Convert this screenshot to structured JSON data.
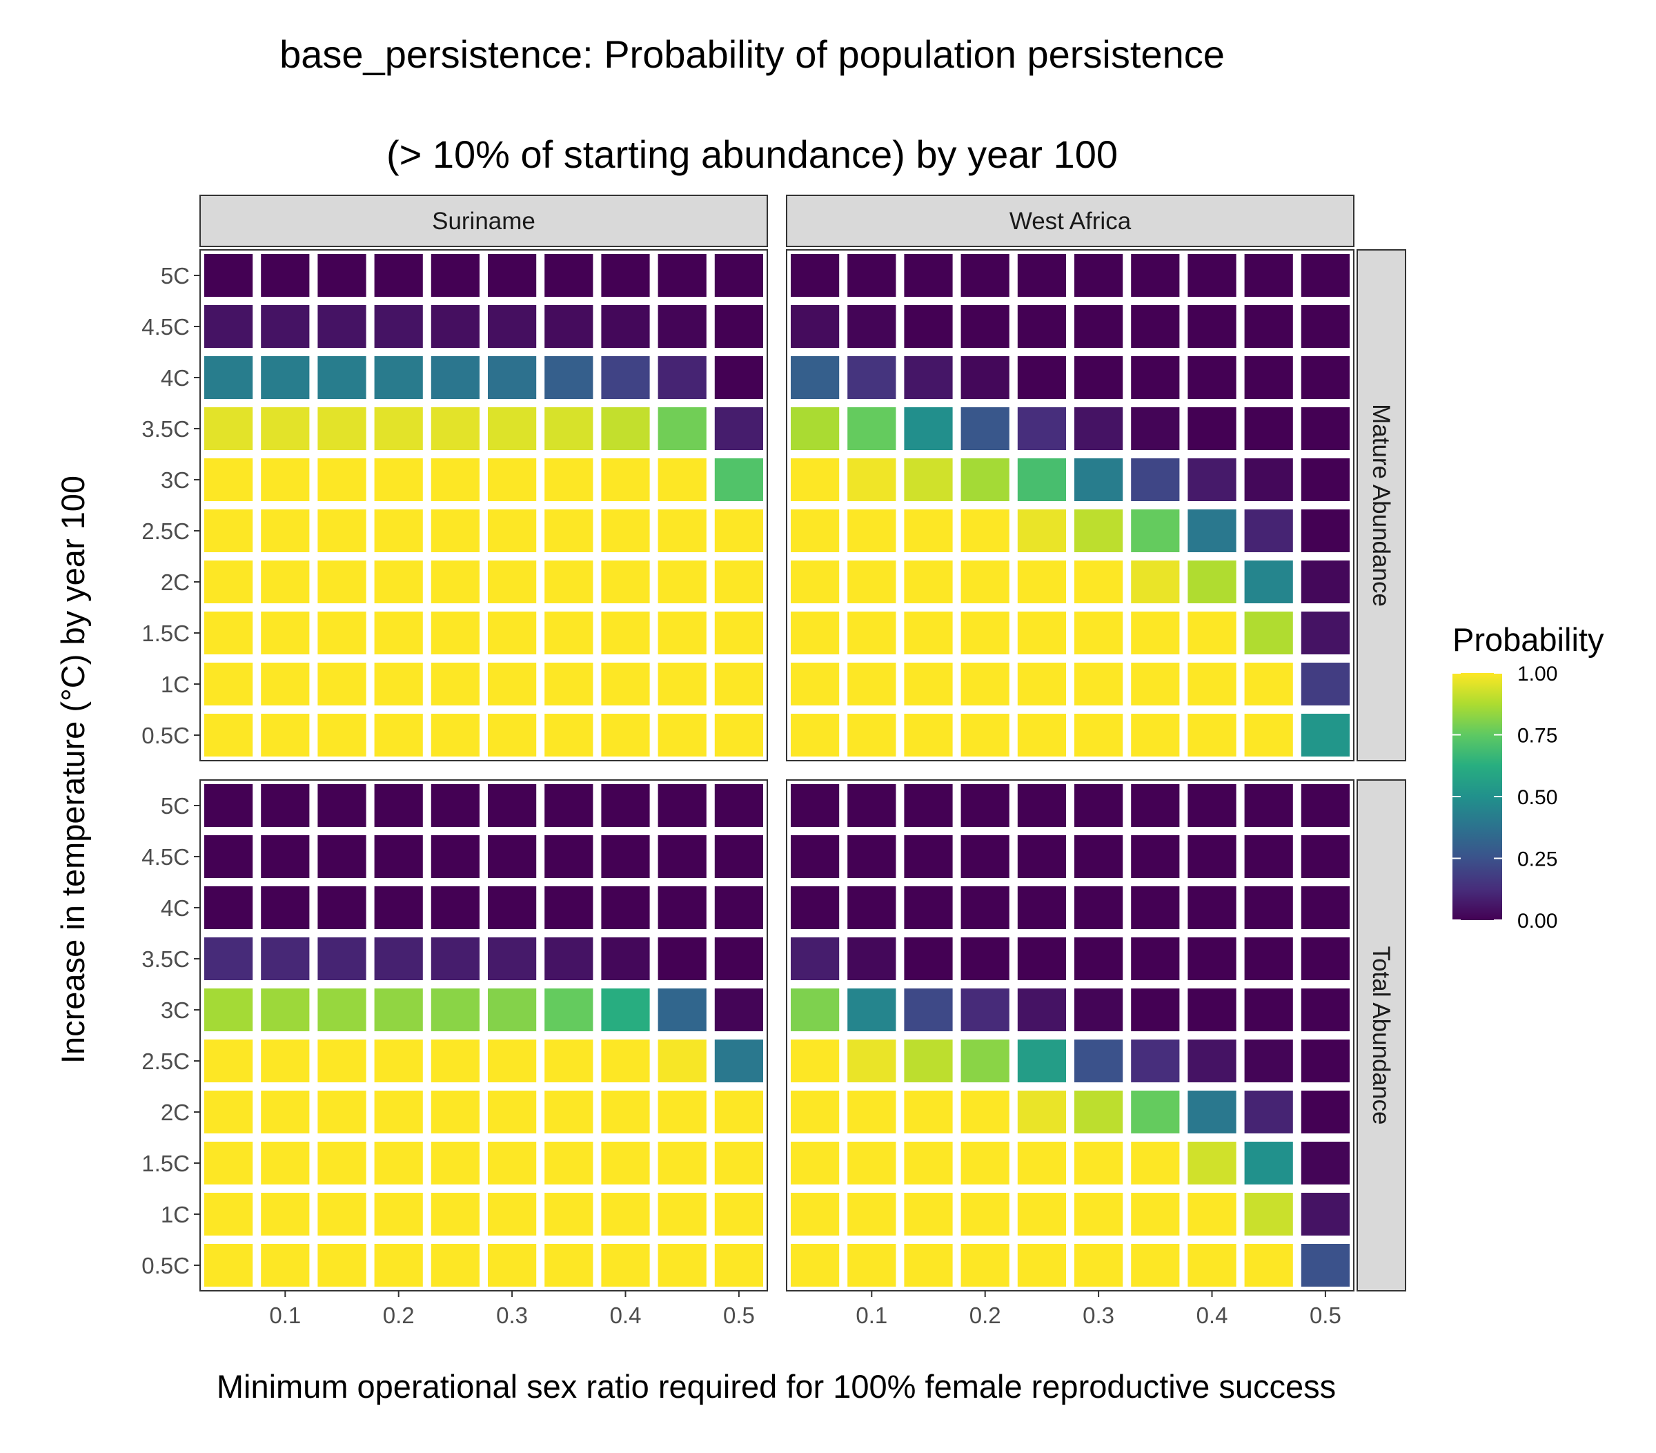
{
  "chart_data": {
    "type": "heatmap",
    "title_lines": [
      "base_persistence: Probability of population persistence",
      "(> 10% of starting abundance) by year 100"
    ],
    "xlabel": "Minimum operational sex ratio required for 100% female reproductive success",
    "ylabel": "Increase in temperature (°C) by year 100",
    "columns": [
      "Suriname",
      "West Africa"
    ],
    "rows": [
      "Mature Abundance",
      "Total Abundance"
    ],
    "x": [
      0.05,
      0.1,
      0.15,
      0.2,
      0.25,
      0.3,
      0.35,
      0.4,
      0.45,
      0.5
    ],
    "x_ticks": [
      0.1,
      0.2,
      0.3,
      0.4,
      0.5
    ],
    "x_tick_labels": [
      "0.1",
      "0.2",
      "0.3",
      "0.4",
      "0.5"
    ],
    "xlim": [
      0.025,
      0.525
    ],
    "y_labels": [
      "5C",
      "4.5C",
      "4C",
      "3.5C",
      "3C",
      "2.5C",
      "2C",
      "1.5C",
      "1C",
      "0.5C"
    ],
    "legend": {
      "title": "Probability",
      "ticks": [
        "1.00",
        "0.75",
        "0.50",
        "0.25",
        "0.00"
      ],
      "tick_values": [
        1.0,
        0.75,
        0.5,
        0.25,
        0.0
      ],
      "position": "right",
      "colormap": "viridis"
    },
    "panels": [
      {
        "column": "Suriname",
        "row": "Mature Abundance",
        "values": [
          [
            0.0,
            0.0,
            0.0,
            0.0,
            0.0,
            0.0,
            0.0,
            0.0,
            0.0,
            0.0
          ],
          [
            0.05,
            0.05,
            0.05,
            0.05,
            0.04,
            0.04,
            0.03,
            0.02,
            0.01,
            0.0
          ],
          [
            0.42,
            0.42,
            0.42,
            0.41,
            0.39,
            0.37,
            0.3,
            0.2,
            0.1,
            0.0
          ],
          [
            0.96,
            0.96,
            0.96,
            0.96,
            0.96,
            0.95,
            0.94,
            0.91,
            0.78,
            0.08
          ],
          [
            1.0,
            1.0,
            1.0,
            1.0,
            1.0,
            1.0,
            1.0,
            1.0,
            1.0,
            0.72
          ],
          [
            1.0,
            1.0,
            1.0,
            1.0,
            1.0,
            1.0,
            1.0,
            1.0,
            1.0,
            1.0
          ],
          [
            1.0,
            1.0,
            1.0,
            1.0,
            1.0,
            1.0,
            1.0,
            1.0,
            1.0,
            1.0
          ],
          [
            1.0,
            1.0,
            1.0,
            1.0,
            1.0,
            1.0,
            1.0,
            1.0,
            1.0,
            1.0
          ],
          [
            1.0,
            1.0,
            1.0,
            1.0,
            1.0,
            1.0,
            1.0,
            1.0,
            1.0,
            1.0
          ],
          [
            1.0,
            1.0,
            1.0,
            1.0,
            1.0,
            1.0,
            1.0,
            1.0,
            1.0,
            1.0
          ]
        ]
      },
      {
        "column": "West Africa",
        "row": "Mature Abundance",
        "values": [
          [
            0.0,
            0.0,
            0.0,
            0.0,
            0.0,
            0.0,
            0.0,
            0.0,
            0.0,
            0.0
          ],
          [
            0.03,
            0.01,
            0.0,
            0.0,
            0.0,
            0.0,
            0.0,
            0.0,
            0.0,
            0.0
          ],
          [
            0.3,
            0.15,
            0.06,
            0.02,
            0.0,
            0.0,
            0.0,
            0.0,
            0.0,
            0.0
          ],
          [
            0.87,
            0.76,
            0.49,
            0.27,
            0.13,
            0.05,
            0.01,
            0.0,
            0.0,
            0.0
          ],
          [
            1.0,
            0.98,
            0.93,
            0.86,
            0.7,
            0.42,
            0.21,
            0.07,
            0.02,
            0.0
          ],
          [
            1.0,
            1.0,
            1.0,
            1.0,
            0.97,
            0.9,
            0.76,
            0.4,
            0.1,
            0.0
          ],
          [
            1.0,
            1.0,
            1.0,
            1.0,
            1.0,
            1.0,
            0.97,
            0.88,
            0.45,
            0.02
          ],
          [
            1.0,
            1.0,
            1.0,
            1.0,
            1.0,
            1.0,
            1.0,
            1.0,
            0.88,
            0.05
          ],
          [
            1.0,
            1.0,
            1.0,
            1.0,
            1.0,
            1.0,
            1.0,
            1.0,
            1.0,
            0.18
          ],
          [
            1.0,
            1.0,
            1.0,
            1.0,
            1.0,
            1.0,
            1.0,
            1.0,
            1.0,
            0.52
          ]
        ]
      },
      {
        "column": "Suriname",
        "row": "Total Abundance",
        "values": [
          [
            0.0,
            0.0,
            0.0,
            0.0,
            0.0,
            0.0,
            0.0,
            0.0,
            0.0,
            0.0
          ],
          [
            0.0,
            0.0,
            0.0,
            0.0,
            0.0,
            0.0,
            0.0,
            0.0,
            0.0,
            0.0
          ],
          [
            0.0,
            0.0,
            0.0,
            0.0,
            0.0,
            0.0,
            0.0,
            0.0,
            0.0,
            0.0
          ],
          [
            0.12,
            0.11,
            0.1,
            0.09,
            0.08,
            0.07,
            0.05,
            0.02,
            0.0,
            0.0
          ],
          [
            0.86,
            0.85,
            0.84,
            0.83,
            0.82,
            0.81,
            0.76,
            0.62,
            0.33,
            0.01
          ],
          [
            1.0,
            1.0,
            1.0,
            1.0,
            1.0,
            1.0,
            1.0,
            1.0,
            0.99,
            0.4
          ],
          [
            1.0,
            1.0,
            1.0,
            1.0,
            1.0,
            1.0,
            1.0,
            1.0,
            1.0,
            1.0
          ],
          [
            1.0,
            1.0,
            1.0,
            1.0,
            1.0,
            1.0,
            1.0,
            1.0,
            1.0,
            1.0
          ],
          [
            1.0,
            1.0,
            1.0,
            1.0,
            1.0,
            1.0,
            1.0,
            1.0,
            1.0,
            1.0
          ],
          [
            1.0,
            1.0,
            1.0,
            1.0,
            1.0,
            1.0,
            1.0,
            1.0,
            1.0,
            1.0
          ]
        ]
      },
      {
        "column": "West Africa",
        "row": "Total Abundance",
        "values": [
          [
            0.0,
            0.0,
            0.0,
            0.0,
            0.0,
            0.0,
            0.0,
            0.0,
            0.0,
            0.0
          ],
          [
            0.0,
            0.0,
            0.0,
            0.0,
            0.0,
            0.0,
            0.0,
            0.0,
            0.0,
            0.0
          ],
          [
            0.0,
            0.0,
            0.0,
            0.0,
            0.0,
            0.0,
            0.0,
            0.0,
            0.0,
            0.0
          ],
          [
            0.08,
            0.02,
            0.0,
            0.0,
            0.0,
            0.0,
            0.0,
            0.0,
            0.0,
            0.0
          ],
          [
            0.8,
            0.45,
            0.22,
            0.12,
            0.05,
            0.01,
            0.0,
            0.0,
            0.0,
            0.0
          ],
          [
            1.0,
            0.97,
            0.9,
            0.82,
            0.55,
            0.25,
            0.13,
            0.05,
            0.01,
            0.0
          ],
          [
            1.0,
            1.0,
            1.0,
            1.0,
            0.97,
            0.9,
            0.76,
            0.4,
            0.1,
            0.0
          ],
          [
            1.0,
            1.0,
            1.0,
            1.0,
            1.0,
            1.0,
            1.0,
            0.93,
            0.5,
            0.01
          ],
          [
            1.0,
            1.0,
            1.0,
            1.0,
            1.0,
            1.0,
            1.0,
            1.0,
            0.92,
            0.05
          ],
          [
            1.0,
            1.0,
            1.0,
            1.0,
            1.0,
            1.0,
            1.0,
            1.0,
            1.0,
            0.25
          ]
        ]
      }
    ]
  }
}
